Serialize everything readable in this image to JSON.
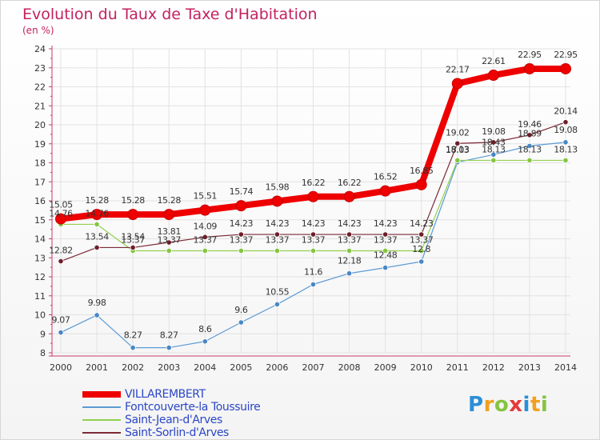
{
  "title": "Evolution du Taux de Taxe d'Habitation",
  "subtitle": "(en %)",
  "logo_text": "Proxiti",
  "chart_data": {
    "type": "line",
    "title": "Evolution du Taux de Taxe d'Habitation",
    "ylabel": "(en %)",
    "xlabel": "",
    "ylim": [
      8,
      24
    ],
    "yticks": [
      8,
      9,
      10,
      11,
      12,
      13,
      14,
      15,
      16,
      17,
      18,
      19,
      20,
      21,
      22,
      23,
      24
    ],
    "x": [
      "2000",
      "2001",
      "2002",
      "2003",
      "2004",
      "2005",
      "2006",
      "2007",
      "2008",
      "2009",
      "2010",
      "2011",
      "2012",
      "2013",
      "2014"
    ],
    "grid": true,
    "legend_position": "bottom-left",
    "series": [
      {
        "name": "VILLAREMBERT",
        "color": "#ee0000",
        "values": [
          15.05,
          15.28,
          15.28,
          15.28,
          15.51,
          15.74,
          15.98,
          16.22,
          16.22,
          16.52,
          16.85,
          22.17,
          22.61,
          22.95,
          22.95
        ],
        "labels": [
          "15.05",
          "15.28",
          "15.28",
          "15.28",
          "15.51",
          "15.74",
          "15.98",
          "16.22",
          "16.22",
          "16.52",
          "16.85",
          "22.17",
          "22.61",
          "22.95",
          "22.95"
        ]
      },
      {
        "name": "Fontcouverte-la Toussuire",
        "color": "#5b9bd5",
        "values": [
          9.07,
          9.98,
          8.27,
          8.27,
          8.6,
          9.6,
          10.55,
          11.6,
          12.18,
          12.48,
          12.8,
          18.03,
          18.43,
          18.89,
          19.08
        ],
        "labels": [
          "9.07",
          "9.98",
          "8.27",
          "8.27",
          "8.6",
          "9.6",
          "10.55",
          "11.6",
          "12.18",
          "12.48",
          "12.8",
          "18.03",
          "18.43",
          "18.89",
          "19.08"
        ]
      },
      {
        "name": "Saint-Jean-d'Arves",
        "color": "#92d050",
        "values": [
          14.76,
          14.76,
          13.37,
          13.37,
          13.37,
          13.37,
          13.37,
          13.37,
          13.37,
          13.37,
          13.37,
          18.13,
          18.13,
          18.13,
          18.13
        ],
        "labels": [
          "14.76",
          "14.76",
          "13.37",
          "13.37",
          "13.37",
          "13.37",
          "13.37",
          "13.37",
          "13.37",
          "13.37",
          "13.37",
          "18.13",
          "18.13",
          "18.13",
          "18.13"
        ]
      },
      {
        "name": "Saint-Sorlin-d'Arves",
        "color": "#7b2a36",
        "values": [
          12.82,
          13.54,
          13.54,
          13.81,
          14.09,
          14.23,
          14.23,
          14.23,
          14.23,
          14.23,
          14.23,
          19.02,
          19.08,
          19.46,
          20.14
        ],
        "labels": [
          "12.82",
          "13.54",
          "13.54",
          "13.81",
          "14.09",
          "14.23",
          "14.23",
          "14.23",
          "14.23",
          "14.23",
          "14.23",
          "19.02",
          "19.08",
          "19.46",
          "20.14"
        ]
      }
    ]
  }
}
